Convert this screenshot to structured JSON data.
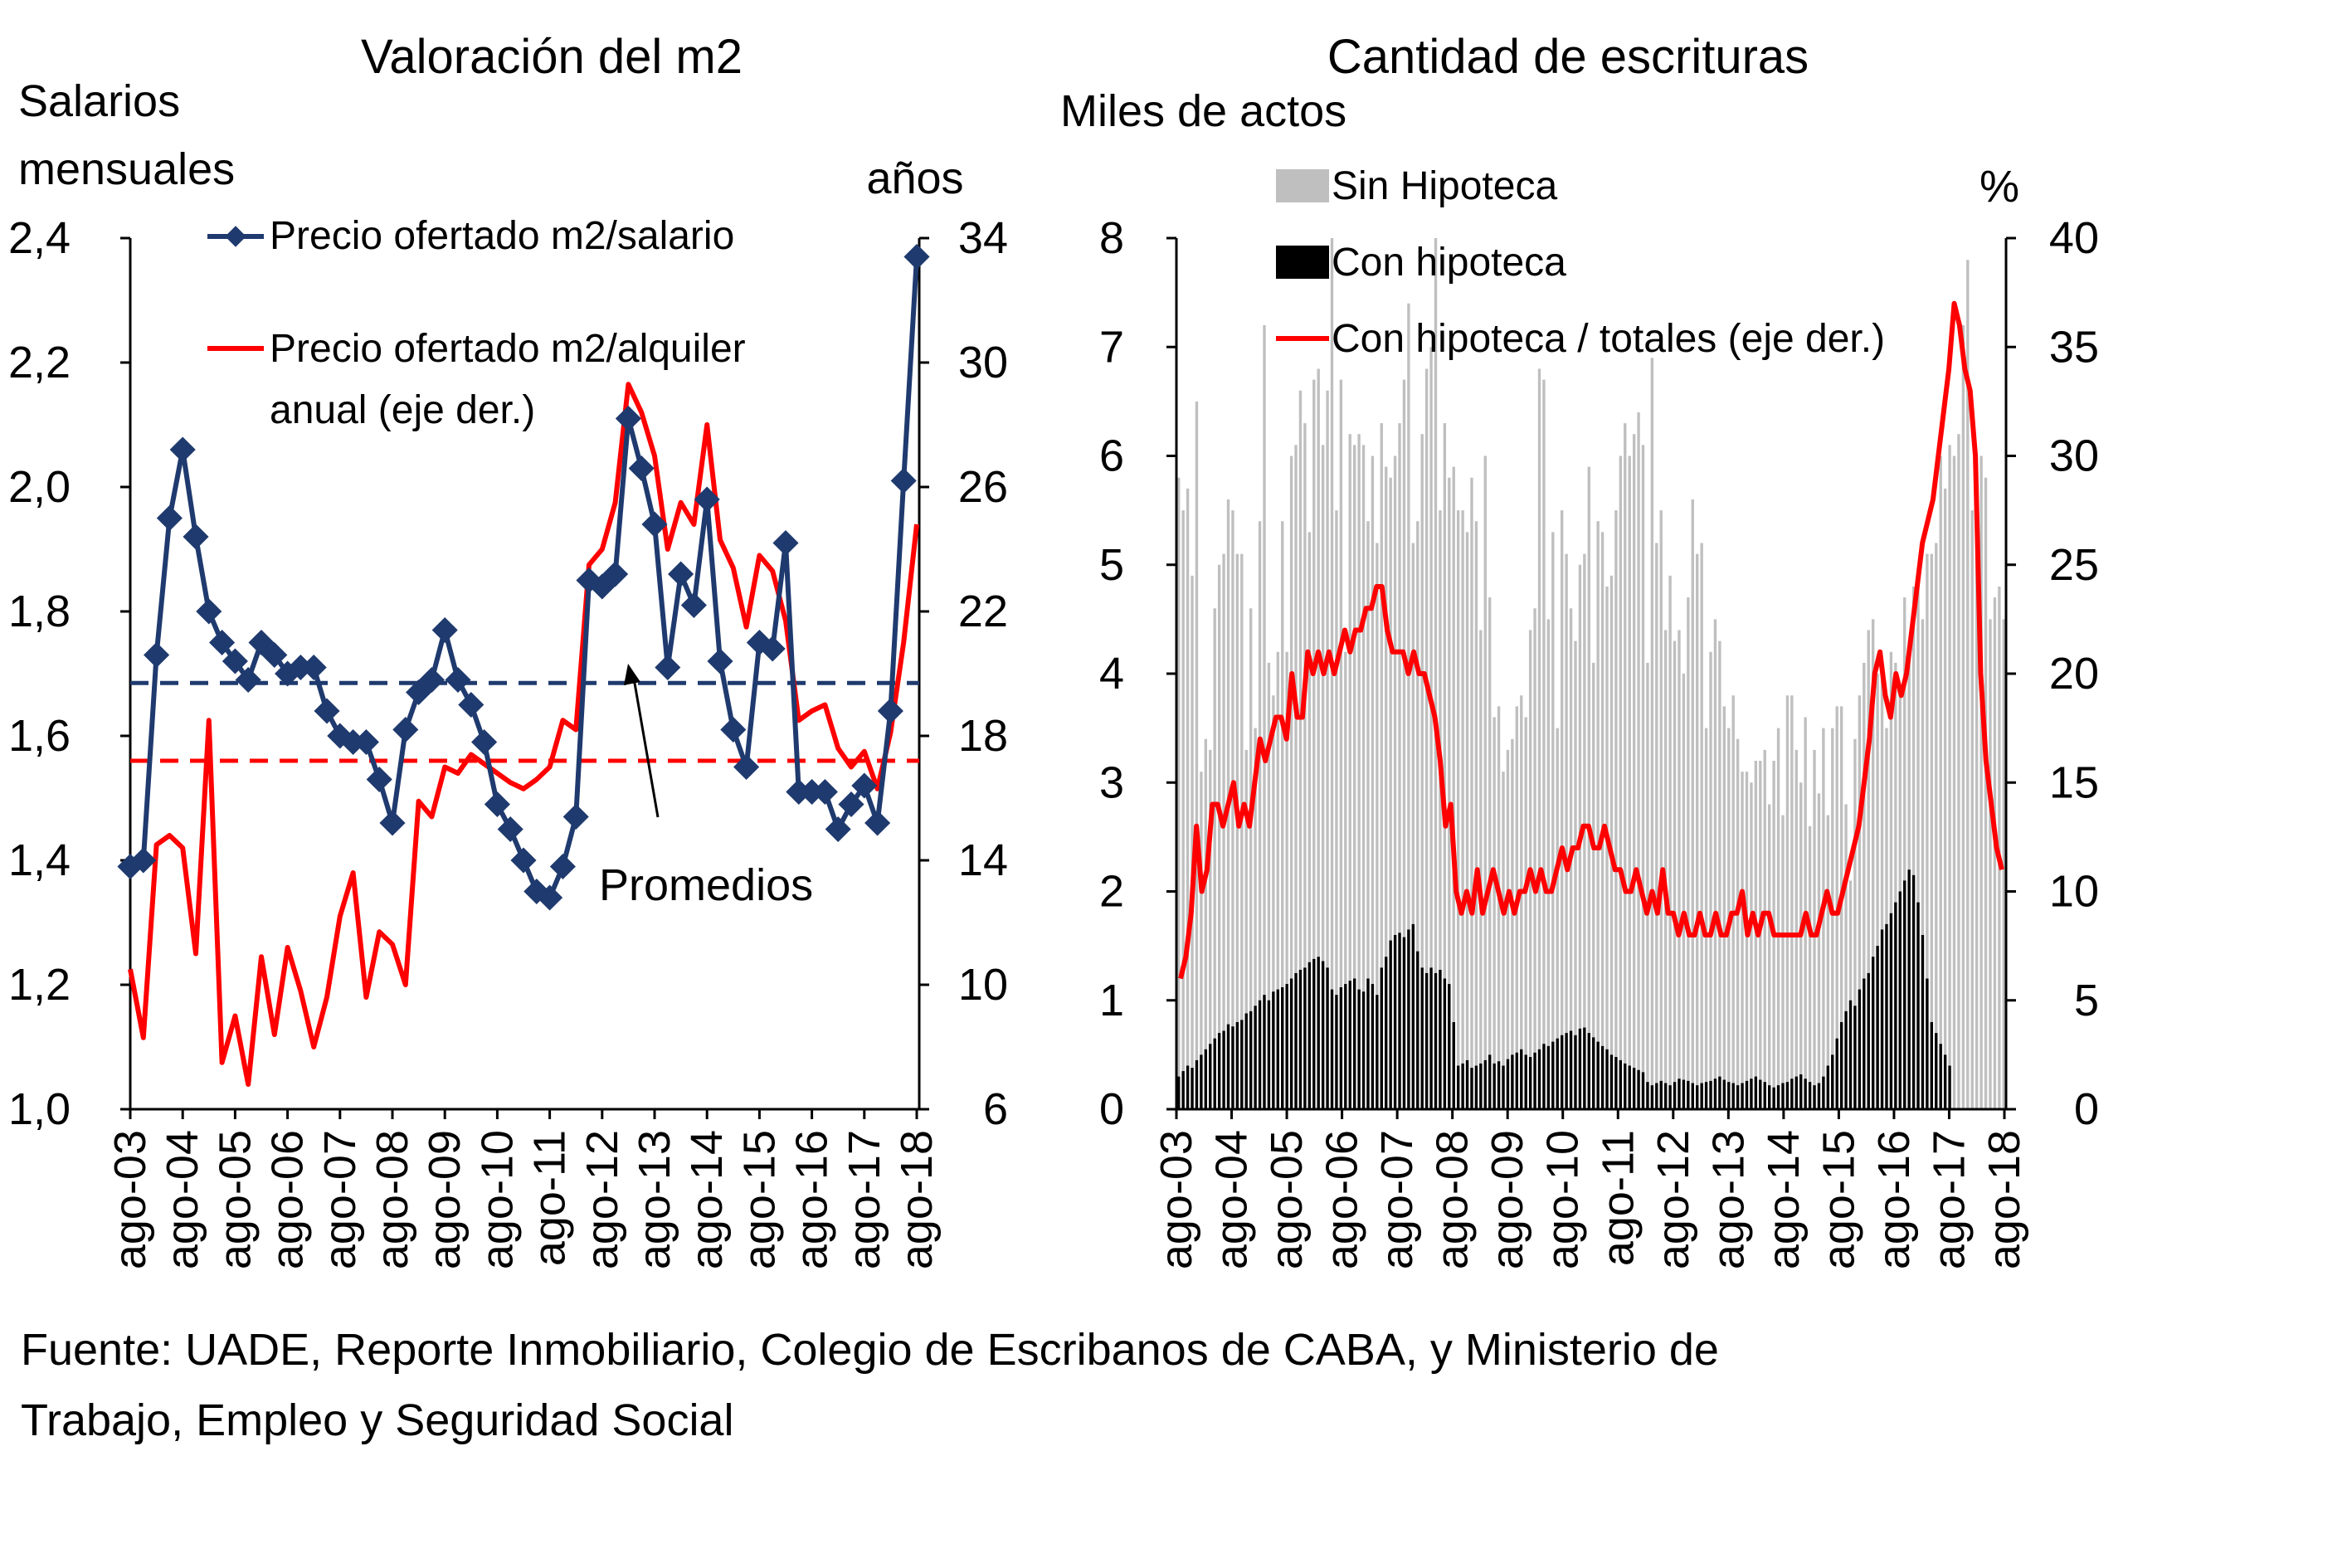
{
  "source": {
    "line1": "Fuente: UADE, Reporte Inmobiliario, Colegio de Escribanos de CABA, y Ministerio de",
    "line2": "Trabajo, Empleo y Seguridad Social"
  },
  "chart_data": [
    {
      "type": "line",
      "title": "Valoración del m2",
      "ylabel_left": [
        "Salarios",
        "mensuales"
      ],
      "ylabel_right": "años",
      "ylim_left": [
        1.0,
        2.4
      ],
      "ylim_right": [
        6,
        34
      ],
      "yticks_left": [
        "1,0",
        "1,2",
        "1,4",
        "1,6",
        "1,8",
        "2,0",
        "2,2",
        "2,4"
      ],
      "yticks_right": [
        "6",
        "10",
        "14",
        "18",
        "22",
        "26",
        "30",
        "34"
      ],
      "xtick_labels": [
        "ago-03",
        "ago-04",
        "ago-05",
        "ago-06",
        "ago-07",
        "ago-08",
        "ago-09",
        "ago-10",
        "ago-11",
        "ago-12",
        "ago-13",
        "ago-14",
        "ago-15",
        "ago-16",
        "ago-17",
        "ago-18"
      ],
      "annotation": "Promedios",
      "series": [
        {
          "name": "Precio ofertado m2/salario",
          "axis": "left",
          "color": "#1f3a6e",
          "marker": "diamond",
          "values": [
            1.39,
            1.4,
            1.73,
            1.95,
            2.06,
            1.92,
            1.8,
            1.75,
            1.72,
            1.69,
            1.75,
            1.73,
            1.7,
            1.71,
            1.71,
            1.64,
            1.6,
            1.59,
            1.59,
            1.53,
            1.46,
            1.61,
            1.67,
            1.69,
            1.77,
            1.69,
            1.65,
            1.59,
            1.49,
            1.45,
            1.4,
            1.35,
            1.34,
            1.39,
            1.47,
            1.85,
            1.84,
            1.86,
            2.11,
            2.03,
            1.94,
            1.71,
            1.86,
            1.81,
            1.98,
            1.72,
            1.61,
            1.55,
            1.75,
            1.74,
            1.91,
            1.51,
            1.51,
            1.51,
            1.45,
            1.49,
            1.52,
            1.46,
            1.64,
            2.01,
            2.37
          ]
        },
        {
          "name": "Precio ofertado m2/alquiler anual (eje der.)",
          "axis": "right",
          "color": "#ff0000",
          "values": [
            10.5,
            8.3,
            14.5,
            14.8,
            14.4,
            11.0,
            18.5,
            7.5,
            9.0,
            6.8,
            10.9,
            8.4,
            11.2,
            9.8,
            8.0,
            9.6,
            12.2,
            13.6,
            9.6,
            11.7,
            11.3,
            10.0,
            15.9,
            15.4,
            17.0,
            16.8,
            17.4,
            17.1,
            16.8,
            16.5,
            16.3,
            16.6,
            17.0,
            18.5,
            18.2,
            23.5,
            24.0,
            25.5,
            29.3,
            28.4,
            27.0,
            24.0,
            25.5,
            24.8,
            28.0,
            24.3,
            23.4,
            21.5,
            23.8,
            23.3,
            21.7,
            18.5,
            18.8,
            19.0,
            17.6,
            17.0,
            17.5,
            16.3,
            18.1,
            21.0,
            24.8
          ]
        }
      ],
      "averages": {
        "salario": 1.685,
        "alquiler": 17.2
      }
    },
    {
      "type": "bar",
      "title": "Cantidad de escrituras",
      "ylabel_left": "Miles de actos",
      "ylabel_right": "%",
      "ylim_left": [
        0,
        8
      ],
      "ylim_right": [
        0,
        40
      ],
      "yticks_left": [
        "0",
        "1",
        "2",
        "3",
        "4",
        "5",
        "6",
        "7",
        "8"
      ],
      "yticks_right": [
        "0",
        "5",
        "10",
        "15",
        "20",
        "25",
        "30",
        "35",
        "40"
      ],
      "xtick_labels": [
        "ago-03",
        "ago-04",
        "ago-05",
        "ago-06",
        "ago-07",
        "ago-08",
        "ago-09",
        "ago-10",
        "ago-11",
        "ago-12",
        "ago-13",
        "ago-14",
        "ago-15",
        "ago-16",
        "ago-17",
        "ago-18"
      ],
      "series": [
        {
          "name": "Sin Hipoteca",
          "color": "#bfbfbf",
          "values": [
            5.8,
            5.5,
            5.7,
            4.9,
            6.5,
            3.1,
            3.4,
            3.3,
            4.6,
            5.0,
            5.1,
            5.6,
            5.5,
            5.1,
            5.1,
            3.3,
            4.6,
            3.5,
            5.4,
            7.2,
            4.1,
            3.8,
            4.2,
            5.4,
            4.2,
            6.0,
            6.1,
            6.6,
            6.3,
            5.3,
            6.7,
            6.8,
            6.1,
            6.6,
            8.0,
            5.5,
            6.7,
            4.2,
            6.2,
            6.1,
            6.2,
            6.1,
            5.4,
            6.0,
            5.2,
            6.3,
            5.9,
            5.8,
            6.0,
            6.3,
            6.7,
            7.4,
            5.2,
            5.4,
            6.2,
            6.8,
            7.0,
            8.0,
            5.5,
            6.3,
            5.8,
            5.9,
            5.5,
            5.5,
            5.3,
            5.8,
            5.4,
            4.4,
            6.0,
            4.7,
            3.6,
            3.7,
            3.1,
            3.3,
            3.4,
            3.7,
            3.8,
            3.6,
            4.4,
            4.6,
            6.8,
            6.7,
            4.5,
            5.3,
            3.5,
            5.5,
            5.1,
            4.6,
            4.3,
            5.0,
            5.1,
            5.9,
            4.1,
            5.4,
            5.3,
            4.8,
            4.9,
            5.5,
            6.0,
            6.3,
            6.0,
            6.2,
            6.4,
            6.1,
            4.1,
            6.9,
            5.2,
            5.5,
            4.4,
            4.9,
            4.3,
            4.4,
            4.0,
            4.7,
            5.6,
            5.1,
            5.2,
            3.5,
            4.2,
            4.5,
            4.3,
            3.7,
            3.5,
            3.8,
            3.4,
            3.1,
            3.1,
            3.0,
            3.2,
            3.2,
            3.3,
            2.8,
            3.2,
            3.5,
            2.7,
            3.8,
            3.8,
            3.3,
            3.0,
            3.6,
            2.6,
            3.3,
            2.9,
            3.5,
            2.7,
            3.5,
            3.7,
            3.7,
            2.8,
            2.1,
            3.4,
            3.8,
            4.1,
            4.4,
            4.5,
            4.0,
            4.0,
            3.5,
            4.2,
            4.1,
            3.8,
            4.7,
            4.3,
            4.8,
            4.9,
            4.5,
            5.1,
            5.1,
            5.2,
            6.0,
            5.7,
            6.1,
            6.0,
            6.2,
            7.2,
            7.8,
            5.5,
            5.7,
            6.0,
            5.8,
            4.5,
            4.7,
            4.8,
            4.5
          ]
        },
        {
          "name": "Con hipoteca",
          "color": "#000000",
          "values": [
            0.3,
            0.35,
            0.4,
            0.38,
            0.45,
            0.5,
            0.55,
            0.6,
            0.65,
            0.7,
            0.72,
            0.78,
            0.76,
            0.8,
            0.82,
            0.88,
            0.9,
            0.95,
            1.0,
            1.05,
            1.0,
            1.08,
            1.1,
            1.12,
            1.15,
            1.2,
            1.25,
            1.28,
            1.3,
            1.35,
            1.38,
            1.4,
            1.36,
            1.3,
            1.1,
            1.05,
            1.12,
            1.15,
            1.18,
            1.2,
            1.1,
            1.08,
            1.2,
            1.15,
            1.05,
            1.3,
            1.4,
            1.55,
            1.6,
            1.62,
            1.58,
            1.65,
            1.7,
            1.45,
            1.3,
            1.25,
            1.3,
            1.25,
            1.28,
            1.2,
            1.15,
            0.8,
            0.4,
            0.42,
            0.45,
            0.38,
            0.4,
            0.42,
            0.45,
            0.5,
            0.42,
            0.44,
            0.4,
            0.46,
            0.5,
            0.52,
            0.55,
            0.5,
            0.48,
            0.52,
            0.55,
            0.6,
            0.58,
            0.62,
            0.65,
            0.68,
            0.7,
            0.72,
            0.68,
            0.74,
            0.75,
            0.7,
            0.66,
            0.62,
            0.58,
            0.55,
            0.5,
            0.48,
            0.45,
            0.42,
            0.4,
            0.38,
            0.36,
            0.34,
            0.25,
            0.22,
            0.24,
            0.26,
            0.24,
            0.22,
            0.25,
            0.28,
            0.27,
            0.26,
            0.24,
            0.22,
            0.24,
            0.25,
            0.26,
            0.28,
            0.3,
            0.27,
            0.25,
            0.24,
            0.22,
            0.24,
            0.26,
            0.28,
            0.3,
            0.27,
            0.25,
            0.22,
            0.2,
            0.22,
            0.24,
            0.25,
            0.28,
            0.3,
            0.32,
            0.28,
            0.25,
            0.22,
            0.24,
            0.3,
            0.4,
            0.5,
            0.65,
            0.8,
            0.9,
            1.0,
            0.95,
            1.1,
            1.2,
            1.25,
            1.4,
            1.5,
            1.65,
            1.7,
            1.8,
            1.9,
            2.0,
            2.1,
            2.2,
            2.15,
            1.9,
            1.6,
            1.2,
            0.8,
            0.7,
            0.6,
            0.5,
            0.4
          ]
        },
        {
          "name": "Con hipoteca / totales (eje der.)",
          "axis": "right",
          "type": "line",
          "color": "#ff0000",
          "values": [
            6,
            7,
            9,
            13,
            10,
            11,
            14,
            14,
            13,
            14,
            15,
            13,
            14,
            13,
            15,
            17,
            16,
            17,
            18,
            18,
            17,
            20,
            18,
            18,
            21,
            20,
            21,
            20,
            21,
            20,
            21,
            22,
            21,
            22,
            22,
            23,
            23,
            24,
            24,
            22,
            21,
            21,
            21,
            20,
            21,
            20,
            20,
            19,
            18,
            16,
            13,
            14,
            10,
            9,
            10,
            9,
            11,
            9,
            10,
            11,
            10,
            9,
            10,
            9,
            10,
            10,
            11,
            10,
            11,
            10,
            10,
            11,
            12,
            11,
            12,
            12,
            13,
            13,
            12,
            12,
            13,
            12,
            11,
            11,
            10,
            10,
            11,
            10,
            9,
            10,
            9,
            11,
            9,
            9,
            8,
            9,
            8,
            8,
            9,
            8,
            8,
            9,
            8,
            8,
            9,
            9,
            10,
            8,
            9,
            8,
            9,
            9,
            8,
            8,
            8,
            8,
            8,
            8,
            9,
            8,
            8,
            9,
            10,
            9,
            9,
            10,
            11,
            12,
            13,
            15,
            17,
            20,
            21,
            19,
            18,
            20,
            19,
            20,
            22,
            24,
            26,
            27,
            28,
            30,
            32,
            34,
            37,
            36,
            34,
            33,
            30,
            20,
            16,
            14,
            12,
            11
          ]
        }
      ]
    }
  ]
}
